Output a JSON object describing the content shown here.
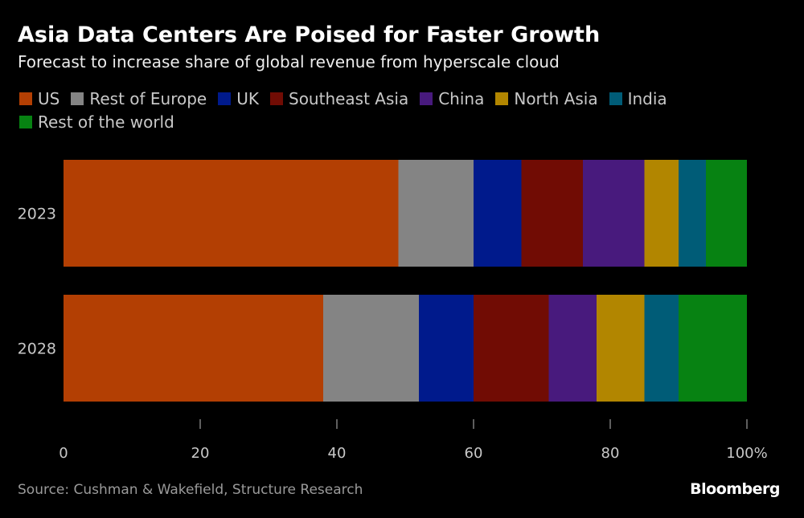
{
  "title": "Asia Data Centers Are Poised for Faster Growth",
  "subtitle": "Forecast to increase share of global revenue from hyperscale cloud",
  "source": "Source: Cushman & Wakefield, Structure Research",
  "brand": "Bloomberg",
  "legend": [
    {
      "label": "US",
      "color": "#b33f03"
    },
    {
      "label": "Rest of Europe",
      "color": "#848484"
    },
    {
      "label": "UK",
      "color": "#001a8c"
    },
    {
      "label": "Southeast Asia",
      "color": "#710c04"
    },
    {
      "label": "China",
      "color": "#481a7d"
    },
    {
      "label": "North Asia",
      "color": "#b28600"
    },
    {
      "label": "India",
      "color": "#005c77"
    },
    {
      "label": "Rest of the world",
      "color": "#078212"
    }
  ],
  "chart_data": {
    "type": "bar",
    "orientation": "horizontal",
    "stacked": true,
    "categories": [
      "2023",
      "2028"
    ],
    "series": [
      {
        "name": "US",
        "values": [
          49,
          38
        ]
      },
      {
        "name": "Rest of Europe",
        "values": [
          11,
          14
        ]
      },
      {
        "name": "UK",
        "values": [
          7,
          8
        ]
      },
      {
        "name": "Southeast Asia",
        "values": [
          9,
          11
        ]
      },
      {
        "name": "China",
        "values": [
          9,
          7
        ]
      },
      {
        "name": "North Asia",
        "values": [
          5,
          7
        ]
      },
      {
        "name": "India",
        "values": [
          4,
          5
        ]
      },
      {
        "name": "Rest of the world",
        "values": [
          6,
          10
        ]
      }
    ],
    "xlim": [
      0,
      100
    ],
    "xticks": [
      "0",
      "20",
      "40",
      "60",
      "80",
      "100%"
    ],
    "title": "Asia Data Centers Are Poised for Faster Growth",
    "xlabel": "",
    "ylabel": ""
  }
}
